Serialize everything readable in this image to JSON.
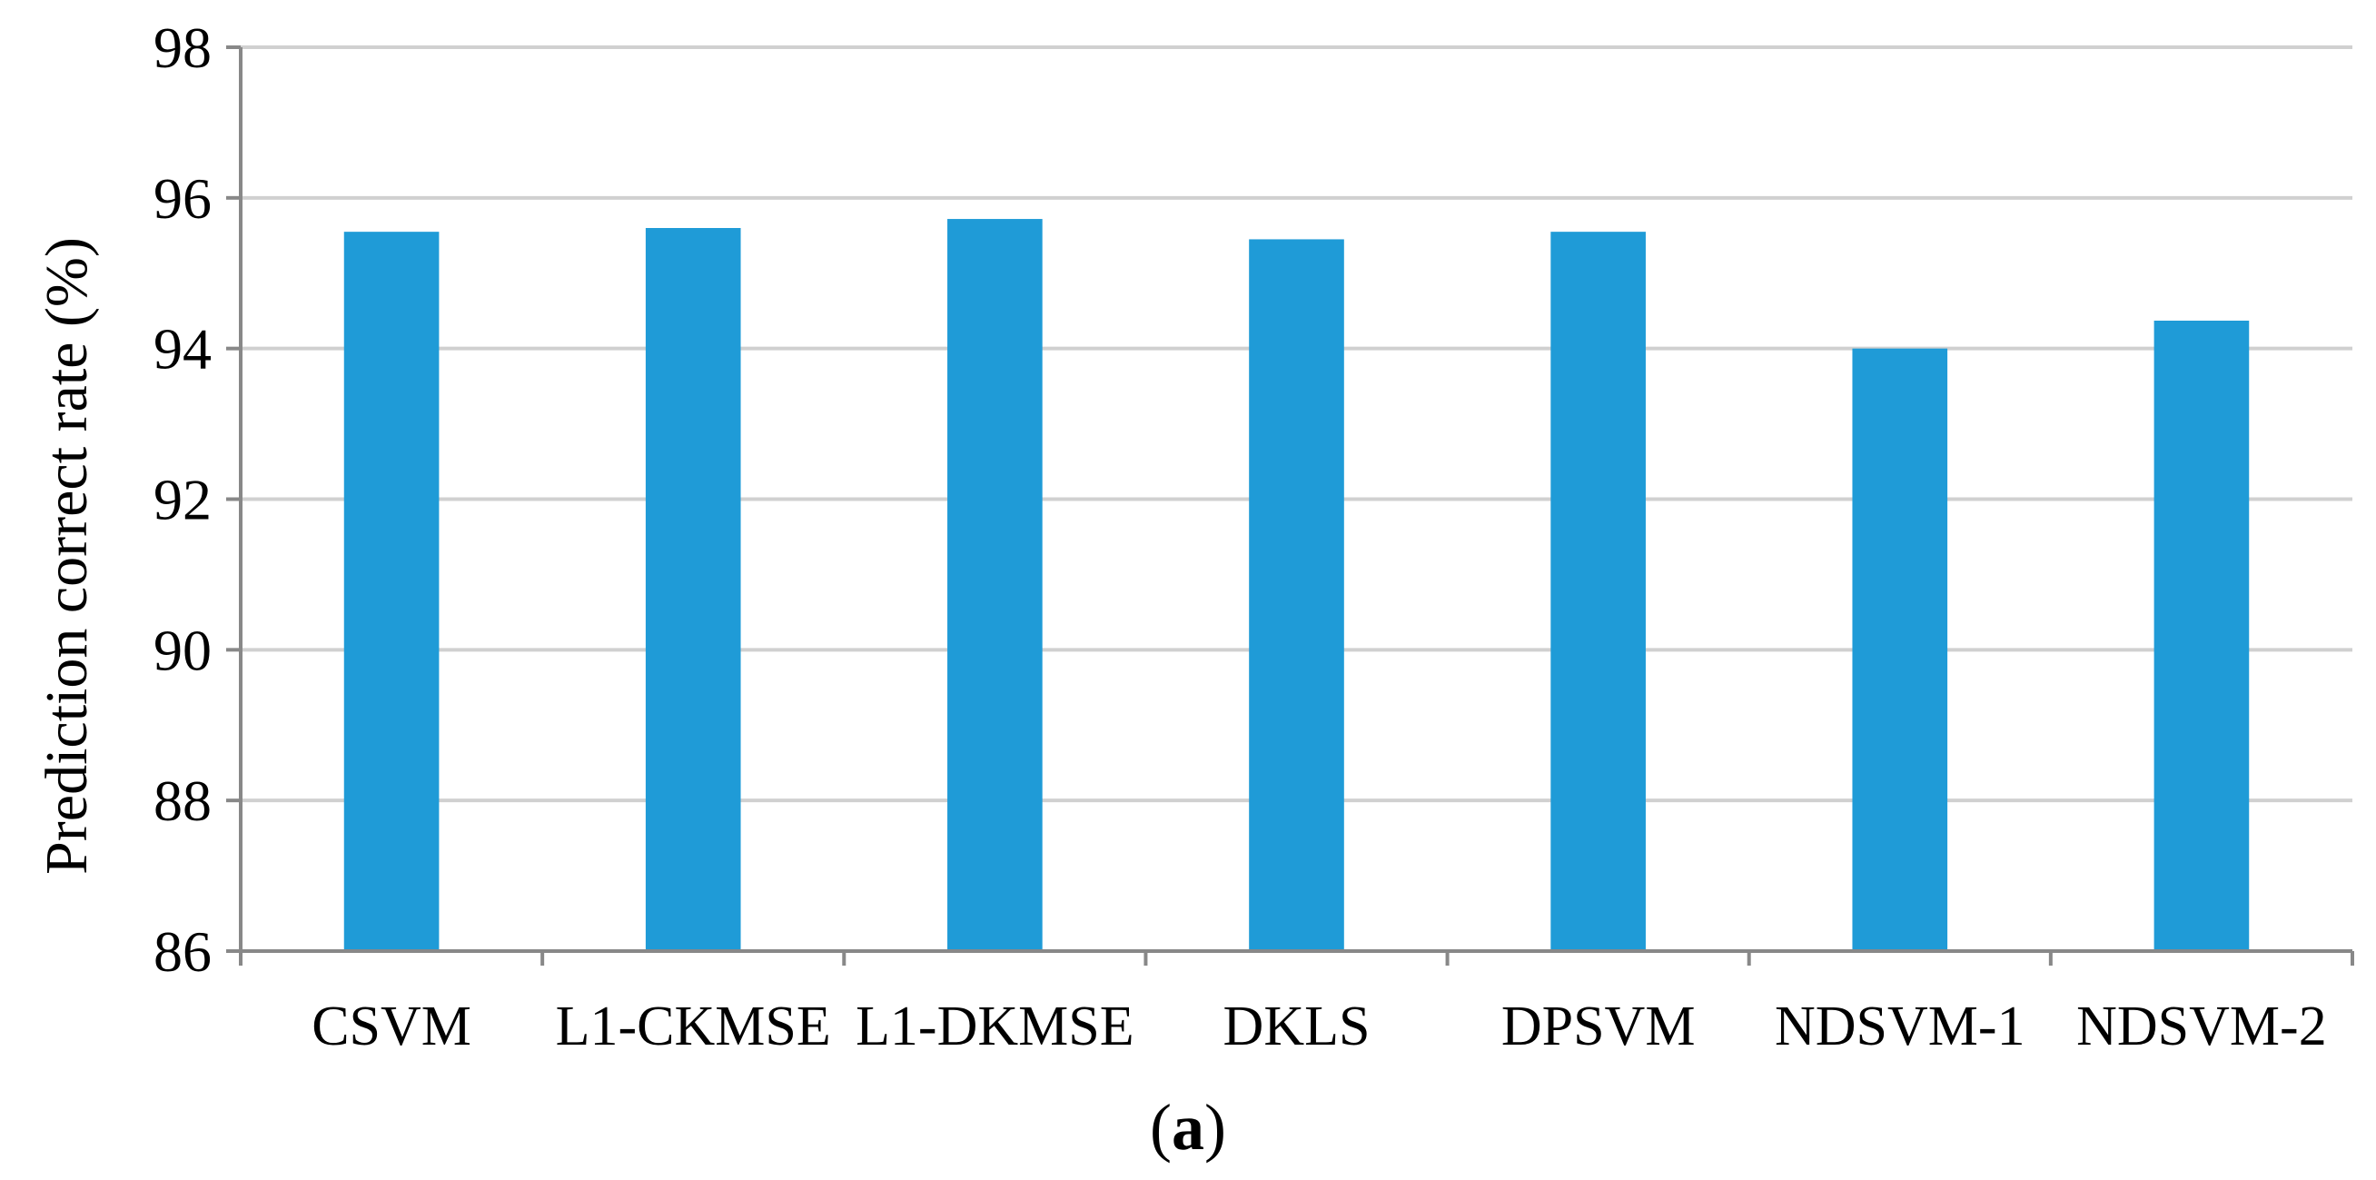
{
  "chart_data": {
    "type": "bar",
    "categories": [
      "CSVM",
      "L1-CKMSE",
      "L1-DKMSE",
      "DKLS",
      "DPSVM",
      "NDSVM-1",
      "NDSVM-2"
    ],
    "values": [
      95.55,
      95.6,
      95.72,
      95.45,
      95.55,
      94.0,
      94.37
    ],
    "title": "",
    "xlabel": "",
    "ylabel": "Prediction correct rate (%)",
    "ylim": [
      86,
      98
    ],
    "yticks": [
      "86",
      "88",
      "90",
      "92",
      "94",
      "96",
      "98"
    ],
    "grid": true,
    "legend": "none",
    "bar_color": "#1f9bd7"
  },
  "caption": {
    "open": "(",
    "letter": "a",
    "close": ")"
  }
}
